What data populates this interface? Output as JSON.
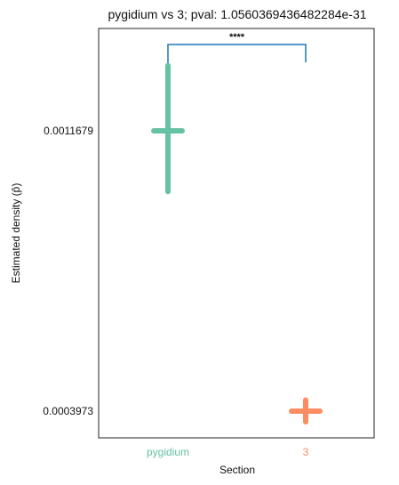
{
  "chart_data": {
    "type": "scatter",
    "title": "pygidium vs 3; pval: 1.0560369436482284e-31",
    "xlabel": "Section",
    "ylabel": "Estimated density (p̂)",
    "categories": [
      "pygidium",
      "3"
    ],
    "yticks": [
      {
        "value": 0.0003973,
        "label": "0.0003973"
      },
      {
        "value": 0.0011679,
        "label": "0.0011679"
      }
    ],
    "ylim": [
      0.00033,
      0.0013
    ],
    "grid": false,
    "series": [
      {
        "category": "pygidium",
        "color": "#66c2a5",
        "value": 0.0011679,
        "error_low": 0.001001,
        "error_high": 0.001347
      },
      {
        "category": "3",
        "color": "#fc8d62",
        "value": 0.0003973,
        "error_low": 0.000368,
        "error_high": 0.000428
      }
    ],
    "significance": {
      "from": "pygidium",
      "to": "3",
      "label": "****",
      "color": "#1f77b4"
    }
  }
}
